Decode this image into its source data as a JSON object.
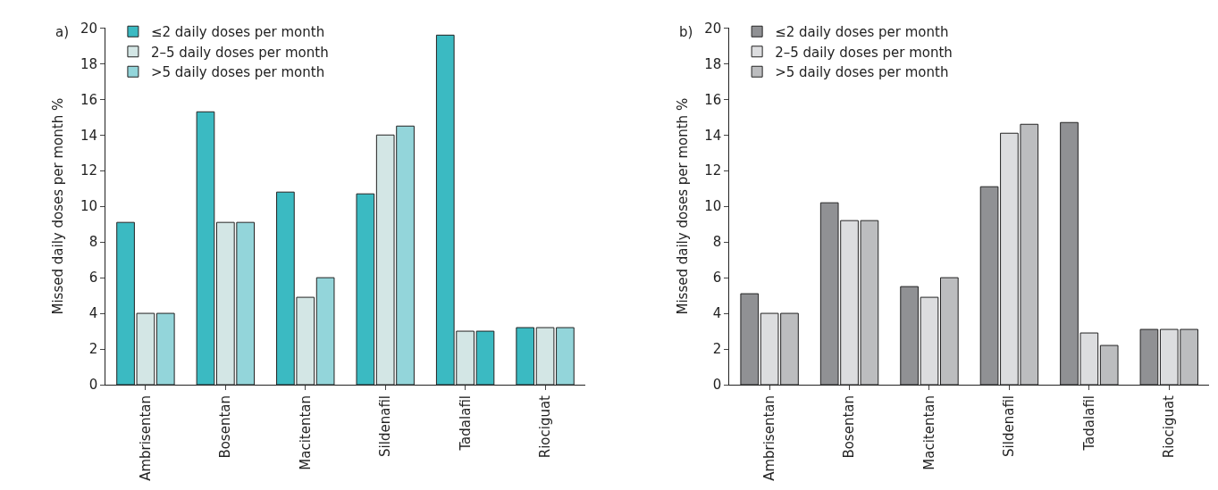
{
  "chart_data": [
    {
      "type": "bar",
      "title": "a)",
      "ylabel": "Missed daily doses per month %",
      "categories": [
        "Ambrisentan",
        "Bosentan",
        "Macitentan",
        "Sildenafil",
        "Tadalafil",
        "Riociguat"
      ],
      "ylim": [
        0,
        20
      ],
      "yticks": [
        0,
        2,
        4,
        6,
        8,
        10,
        12,
        14,
        16,
        18,
        20
      ],
      "grid": false,
      "legend": "top left",
      "series": [
        {
          "name": "≤2 daily doses per month",
          "color": "#3bbac2",
          "values": [
            9.1,
            15.3,
            10.8,
            10.7,
            19.6,
            3.2
          ]
        },
        {
          "name": "2–5 daily doses per month",
          "color": "#d3e6e5",
          "values": [
            4,
            9.1,
            4.9,
            14,
            3,
            3.2
          ]
        },
        {
          "name": ">5 daily doses per month",
          "color": "#93d5da",
          "colors": [
            "#93d5da",
            "#93d5da",
            "#93d5da",
            "#93d5da",
            "#3bbac2",
            "#93d5da"
          ],
          "values": [
            4,
            9.1,
            6,
            14.5,
            3,
            3.2
          ]
        }
      ]
    },
    {
      "type": "bar",
      "title": "b)",
      "ylabel": "Missed daily doses per month %",
      "categories": [
        "Ambrisentan",
        "Bosentan",
        "Macitentan",
        "Sildenafil",
        "Tadalafil",
        "Riociguat"
      ],
      "ylim": [
        0,
        20
      ],
      "yticks": [
        0,
        2,
        4,
        6,
        8,
        10,
        12,
        14,
        16,
        18,
        20
      ],
      "grid": false,
      "legend": "top left",
      "series": [
        {
          "name": "≤2 daily doses per month",
          "color": "#909194",
          "values": [
            5.1,
            10.2,
            5.5,
            11.1,
            14.7,
            3.1
          ]
        },
        {
          "name": "2–5 daily doses per month",
          "color": "#dcdddf",
          "values": [
            4,
            9.2,
            4.9,
            14.1,
            2.9,
            3.1
          ]
        },
        {
          "name": ">5 daily doses per month",
          "color": "#bcbdbf",
          "values": [
            4,
            9.2,
            6,
            14.6,
            2.2,
            3.1
          ]
        }
      ]
    }
  ]
}
